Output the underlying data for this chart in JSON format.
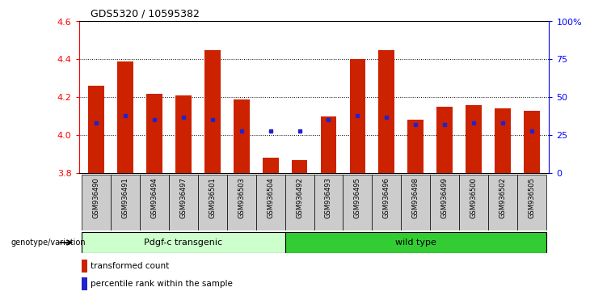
{
  "title": "GDS5320 / 10595382",
  "samples": [
    "GSM936490",
    "GSM936491",
    "GSM936494",
    "GSM936497",
    "GSM936501",
    "GSM936503",
    "GSM936504",
    "GSM936492",
    "GSM936493",
    "GSM936495",
    "GSM936496",
    "GSM936498",
    "GSM936499",
    "GSM936500",
    "GSM936502",
    "GSM936505"
  ],
  "transformed_count": [
    4.26,
    4.39,
    4.22,
    4.21,
    4.45,
    4.19,
    3.88,
    3.87,
    4.1,
    4.4,
    4.45,
    4.08,
    4.15,
    4.16,
    4.14,
    4.13
  ],
  "percentile_rank": [
    33,
    38,
    35,
    37,
    35,
    28,
    28,
    28,
    35,
    38,
    37,
    32,
    32,
    33,
    33,
    28
  ],
  "base_value": 3.8,
  "ylim_left": [
    3.8,
    4.6
  ],
  "ylim_right": [
    0,
    100
  ],
  "yticks_left": [
    3.8,
    4.0,
    4.2,
    4.4,
    4.6
  ],
  "yticks_right": [
    0,
    25,
    50,
    75,
    100
  ],
  "ytick_labels_right": [
    "0",
    "25",
    "50",
    "75",
    "100%"
  ],
  "group1_label": "Pdgf-c transgenic",
  "group2_label": "wild type",
  "group1_count": 7,
  "group2_count": 9,
  "genotype_label": "genotype/variation",
  "bar_color": "#cc2200",
  "dot_color": "#2222cc",
  "group1_bg": "#ccffcc",
  "group2_bg": "#33cc33",
  "xticklabel_bg": "#cccccc",
  "legend_items": [
    "transformed count",
    "percentile rank within the sample"
  ],
  "legend_colors": [
    "#cc2200",
    "#2222cc"
  ],
  "grid_lines": [
    4.0,
    4.2,
    4.4
  ]
}
